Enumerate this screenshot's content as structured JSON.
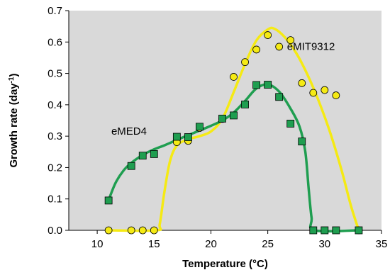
{
  "chart_data": {
    "type": "scatter",
    "xlabel": "Temperature (°C)",
    "ylabel_main": "Growth rate (day",
    "ylabel_sup": "-1",
    "ylabel_tail": ")",
    "xlim": [
      7.5,
      35
    ],
    "ylim": [
      0,
      0.7
    ],
    "xticks": [
      10,
      15,
      20,
      25,
      30,
      35
    ],
    "yticks": [
      0.0,
      0.1,
      0.2,
      0.3,
      0.4,
      0.5,
      0.6,
      0.7
    ],
    "grid": false,
    "plot_background": "#d9d9d9",
    "series": [
      {
        "name": "eMED4",
        "marker": "square",
        "marker_color": "#1f9e50",
        "line_color": "#1f9e50",
        "points": [
          {
            "x": 11,
            "y": 0.095
          },
          {
            "x": 13,
            "y": 0.205
          },
          {
            "x": 14,
            "y": 0.238
          },
          {
            "x": 15,
            "y": 0.243
          },
          {
            "x": 17,
            "y": 0.298
          },
          {
            "x": 18,
            "y": 0.297
          },
          {
            "x": 19,
            "y": 0.33
          },
          {
            "x": 21,
            "y": 0.356
          },
          {
            "x": 22,
            "y": 0.366
          },
          {
            "x": 23,
            "y": 0.401
          },
          {
            "x": 24,
            "y": 0.463
          },
          {
            "x": 25,
            "y": 0.464
          },
          {
            "x": 26,
            "y": 0.425
          },
          {
            "x": 27,
            "y": 0.34
          },
          {
            "x": 28,
            "y": 0.283
          },
          {
            "x": 29,
            "y": 0.0
          },
          {
            "x": 30,
            "y": 0.0
          },
          {
            "x": 31,
            "y": 0.0
          },
          {
            "x": 33,
            "y": 0.0
          }
        ],
        "fit_curve": [
          [
            11,
            0.096
          ],
          [
            11.6,
            0.15
          ],
          [
            12.3,
            0.19
          ],
          [
            13,
            0.215
          ],
          [
            14,
            0.24
          ],
          [
            15,
            0.258
          ],
          [
            16,
            0.272
          ],
          [
            17,
            0.288
          ],
          [
            18,
            0.303
          ],
          [
            19,
            0.318
          ],
          [
            20,
            0.333
          ],
          [
            21,
            0.35
          ],
          [
            22,
            0.375
          ],
          [
            23,
            0.412
          ],
          [
            24,
            0.452
          ],
          [
            25,
            0.465
          ],
          [
            26,
            0.442
          ],
          [
            27,
            0.388
          ],
          [
            27.8,
            0.33
          ],
          [
            28.3,
            0.25
          ],
          [
            28.6,
            0.13
          ],
          [
            28.85,
            0.04
          ],
          [
            29.1,
            0.0
          ],
          [
            33,
            0.0
          ]
        ]
      },
      {
        "name": "eMIT9312",
        "marker": "circle",
        "marker_color": "#f5ea14",
        "line_color": "#f5ea14",
        "points": [
          {
            "x": 11,
            "y": 0.0
          },
          {
            "x": 13,
            "y": 0.0
          },
          {
            "x": 14,
            "y": 0.0
          },
          {
            "x": 15,
            "y": 0.0
          },
          {
            "x": 17,
            "y": 0.281
          },
          {
            "x": 18,
            "y": 0.285
          },
          {
            "x": 19,
            "y": 0.326
          },
          {
            "x": 21,
            "y": 0.355
          },
          {
            "x": 22,
            "y": 0.489
          },
          {
            "x": 23,
            "y": 0.536
          },
          {
            "x": 24,
            "y": 0.576
          },
          {
            "x": 25,
            "y": 0.622
          },
          {
            "x": 26,
            "y": 0.585
          },
          {
            "x": 27,
            "y": 0.606
          },
          {
            "x": 28,
            "y": 0.469
          },
          {
            "x": 29,
            "y": 0.438
          },
          {
            "x": 30,
            "y": 0.447
          },
          {
            "x": 31,
            "y": 0.43
          },
          {
            "x": 33,
            "y": 0.0
          }
        ],
        "fit_curve": [
          [
            11,
            0.0
          ],
          [
            15.2,
            0.0
          ],
          [
            15.5,
            0.02
          ],
          [
            15.9,
            0.12
          ],
          [
            16.4,
            0.22
          ],
          [
            17,
            0.27
          ],
          [
            18,
            0.29
          ],
          [
            19,
            0.3
          ],
          [
            20,
            0.315
          ],
          [
            21,
            0.355
          ],
          [
            22,
            0.44
          ],
          [
            23,
            0.53
          ],
          [
            24,
            0.605
          ],
          [
            25,
            0.64
          ],
          [
            25.6,
            0.642
          ],
          [
            26.5,
            0.615
          ],
          [
            27.5,
            0.565
          ],
          [
            28.5,
            0.495
          ],
          [
            29.5,
            0.41
          ],
          [
            30.5,
            0.31
          ],
          [
            31.5,
            0.19
          ],
          [
            32.3,
            0.08
          ],
          [
            33,
            0.0
          ]
        ]
      }
    ],
    "annotations": [
      {
        "text": "eMIT9312",
        "x": 28.8,
        "y": 0.575
      },
      {
        "text": "eMED4",
        "x": 12.8,
        "y": 0.305
      }
    ]
  }
}
